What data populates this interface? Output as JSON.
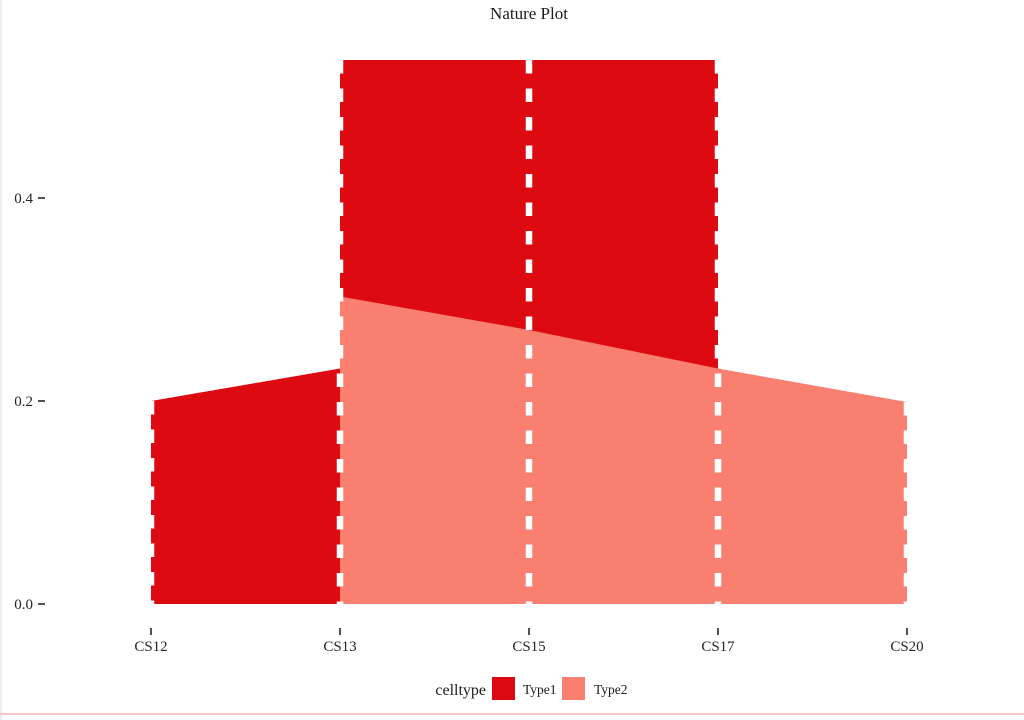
{
  "chart_data": {
    "type": "area",
    "title": "Nature Plot",
    "x_categories": [
      "CS12",
      "CS13",
      "CS15",
      "CS17",
      "CS20"
    ],
    "y_ticks": [
      {
        "label": "0.0",
        "value": 0.0
      },
      {
        "label": "0.2",
        "value": 0.2
      },
      {
        "label": "0.4",
        "value": 0.4
      }
    ],
    "ylim": [
      0,
      0.56
    ],
    "grid": false,
    "series": [
      {
        "name": "Type1",
        "color": "#DE0A12",
        "values": [
          0.2,
          0.23,
          0.27,
          0.3,
          0.0
        ]
      },
      {
        "name": "Type2",
        "color": "#F98071",
        "values": [
          0.0,
          0.3,
          0.27,
          0.23,
          0.2
        ]
      }
    ],
    "geometry": {
      "type1_lower_top": {
        "CS12": 0.2,
        "CS13": 0.232
      },
      "type1_upper": {
        "from": "CS13",
        "to": "CS17",
        "top": 0.536
      },
      "type2_top": {
        "CS13": 0.303,
        "CS15": 0.27,
        "CS17": 0.232,
        "CS20": 0.199
      },
      "dashed_guides": [
        {
          "stage": "CS12",
          "top": 0.2
        },
        {
          "stage": "CS13",
          "top": 0.536
        },
        {
          "stage": "CS15",
          "top": 0.536
        },
        {
          "stage": "CS17",
          "top": 0.536
        },
        {
          "stage": "CS20",
          "top": 0.199
        }
      ],
      "guide_color": "#ffffff"
    },
    "legend": {
      "title": "celltype",
      "position": "bottom"
    }
  },
  "page": {
    "bottom_divider_color": "#f6c5c5"
  }
}
